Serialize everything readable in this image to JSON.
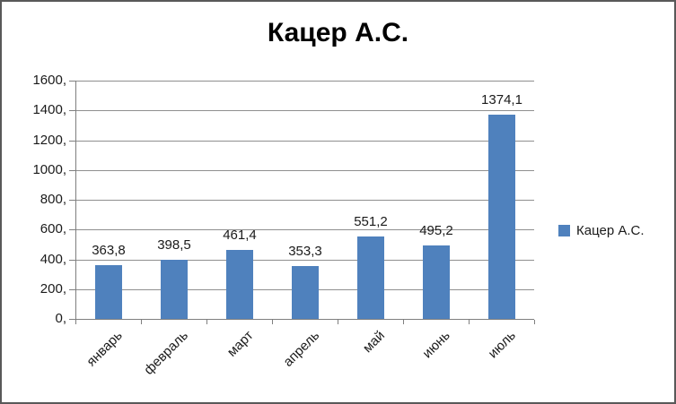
{
  "chart_data": {
    "type": "bar",
    "title": "Кацер А.С.",
    "categories": [
      "январь",
      "февраль",
      "март",
      "апрель",
      "май",
      "июнь",
      "июль"
    ],
    "values": [
      363.8,
      398.5,
      461.4,
      353.3,
      551.2,
      495.2,
      1374.1
    ],
    "value_labels": [
      "363,8",
      "398,5",
      "461,4",
      "353,3",
      "551,2",
      "495,2",
      "1374,1"
    ],
    "y_ticks": [
      0,
      200,
      400,
      600,
      800,
      1000,
      1200,
      1400,
      1600
    ],
    "y_tick_labels": [
      "0,",
      "200,",
      "400,",
      "600,",
      "800,",
      "1000,",
      "1200,",
      "1400,",
      "1600,"
    ],
    "ylim": [
      0,
      1600
    ],
    "xlabel": "",
    "ylabel": "",
    "grid": true,
    "legend_position": "right",
    "legend": [
      {
        "label": "Кацер А.С.",
        "color": "#4F81BD"
      }
    ],
    "colors": {
      "bar": "#4F81BD",
      "gridline": "#8f8f8f",
      "axis": "#7f7f7f",
      "text": "#1a1a1a",
      "title": "#000000",
      "border": "#595959",
      "background": "#ffffff"
    }
  }
}
